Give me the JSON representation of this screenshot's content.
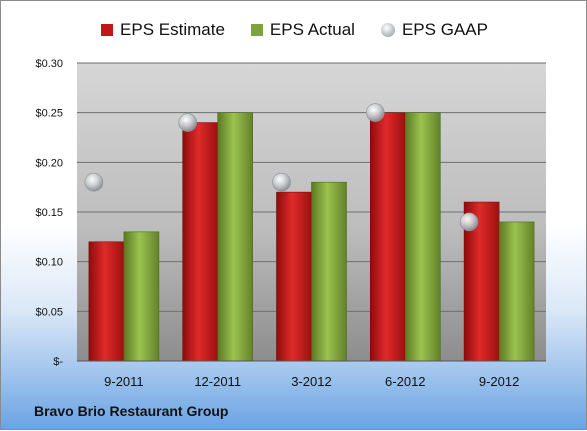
{
  "company": "Bravo Brio Restaurant Group",
  "chart_data": {
    "type": "bar",
    "categories": [
      "9-2011",
      "12-2011",
      "3-2012",
      "6-2012",
      "9-2012"
    ],
    "series": [
      {
        "name": "EPS Estimate",
        "kind": "bar",
        "color": "#c01818",
        "values": [
          0.12,
          0.24,
          0.17,
          0.25,
          0.16
        ]
      },
      {
        "name": "EPS Actual",
        "kind": "bar",
        "color": "#7fa23a",
        "values": [
          0.13,
          0.25,
          0.18,
          0.25,
          0.14
        ]
      },
      {
        "name": "EPS GAAP",
        "kind": "bubble",
        "color": "#b9bec4",
        "values": [
          0.18,
          0.24,
          0.18,
          0.25,
          0.14
        ]
      }
    ],
    "ylim": [
      0,
      0.3
    ],
    "yticks": [
      0,
      0.05,
      0.1,
      0.15,
      0.2,
      0.25,
      0.3
    ],
    "ytick_labels": [
      "$-",
      "$0.05",
      "$0.10",
      "$0.15",
      "$0.20",
      "$0.25",
      "$0.30"
    ],
    "grid": true,
    "legend_position": "top"
  }
}
